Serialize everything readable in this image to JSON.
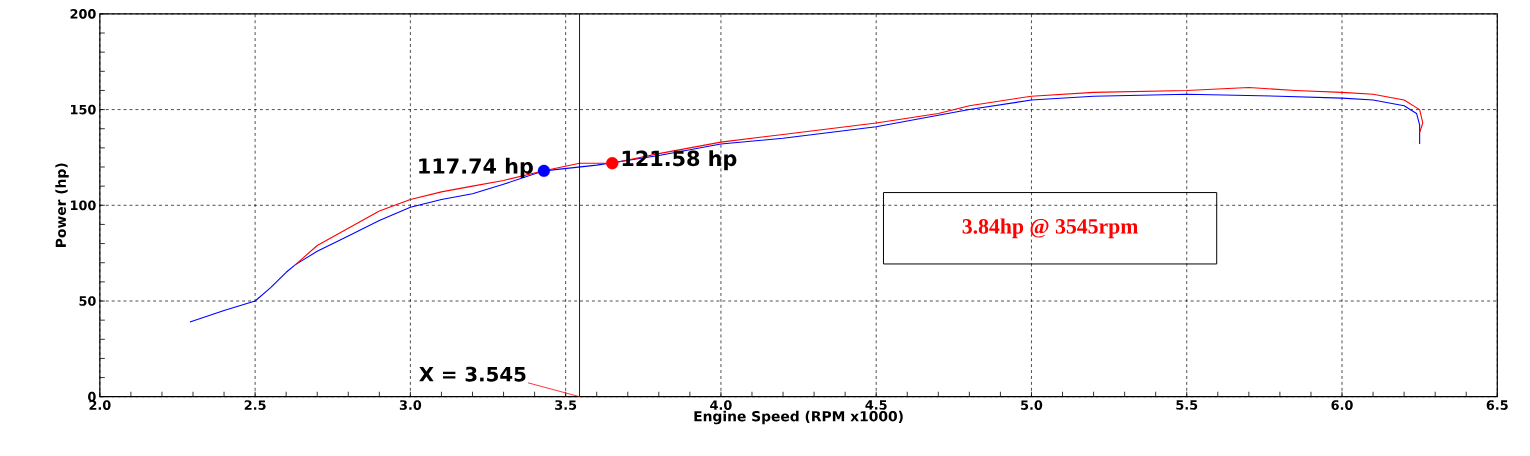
{
  "chart_data": {
    "type": "line",
    "xlabel": "Engine Speed (RPM x1000)",
    "ylabel": "Power (hp)",
    "xlim": [
      2.0,
      6.5
    ],
    "ylim": [
      0,
      200
    ],
    "xticks": [
      {
        "value": 2.0,
        "label": "2.0"
      },
      {
        "value": 2.5,
        "label": "2.5"
      },
      {
        "value": 3.0,
        "label": "3.0"
      },
      {
        "value": 3.5,
        "label": "3.5"
      },
      {
        "value": 4.0,
        "label": "4.0"
      },
      {
        "value": 4.5,
        "label": "4.5"
      },
      {
        "value": 5.0,
        "label": "5.0"
      },
      {
        "value": 5.5,
        "label": "5.5"
      },
      {
        "value": 6.0,
        "label": "6.0"
      },
      {
        "value": 6.5,
        "label": "6.5"
      }
    ],
    "yticks": [
      0,
      50,
      100,
      150,
      200
    ],
    "grid": true,
    "line_style": "solid",
    "series": [
      {
        "color": "#0000ff",
        "x": [
          2.29,
          2.4,
          2.5,
          2.55,
          2.6,
          2.63,
          2.7,
          2.8,
          2.9,
          3.0,
          3.1,
          3.2,
          3.3,
          3.43,
          3.6,
          3.8,
          4.0,
          4.2,
          4.5,
          4.7,
          4.8,
          5.0,
          5.2,
          5.5,
          5.8,
          6.0,
          6.1,
          6.2,
          6.24,
          6.25,
          6.25
        ],
        "values": [
          39,
          45,
          50,
          57,
          65,
          69,
          76,
          84,
          92,
          99,
          103,
          106,
          111,
          118,
          121,
          126,
          132,
          135,
          141,
          147,
          150,
          155,
          157,
          158,
          157,
          156,
          155,
          152,
          148,
          142,
          132
        ]
      },
      {
        "color": "#ff0000",
        "x": [
          2.63,
          2.7,
          2.8,
          2.9,
          3.0,
          3.1,
          3.2,
          3.3,
          3.43,
          3.545,
          3.65,
          3.8,
          4.0,
          4.2,
          4.5,
          4.7,
          4.8,
          5.0,
          5.2,
          5.5,
          5.7,
          5.85,
          6.0,
          6.1,
          6.2,
          6.25,
          6.26,
          6.25
        ],
        "values": [
          69,
          79,
          88,
          97,
          103,
          107,
          110,
          113,
          118,
          122,
          122,
          127,
          133,
          137,
          143,
          148,
          152,
          157,
          159,
          160,
          161.5,
          160,
          159,
          158,
          155,
          150,
          143,
          138
        ]
      },
      {
        "type": "scatter",
        "color": "#0000ff",
        "x": [
          3.43
        ],
        "values": [
          118
        ]
      },
      {
        "type": "scatter",
        "color": "#ff0000",
        "x": [
          3.65
        ],
        "values": [
          122
        ]
      }
    ],
    "ref_lines": [
      {
        "axis": "x",
        "value": 3.545,
        "label": "X = 3.545",
        "color": "#000000"
      }
    ],
    "annotations": [
      {
        "text": "117.74 hp",
        "x": 3.43,
        "y": 118
      },
      {
        "text": "121.58 hp",
        "x": 3.65,
        "y": 122
      },
      "3.84hp @ 3545rpm"
    ]
  }
}
